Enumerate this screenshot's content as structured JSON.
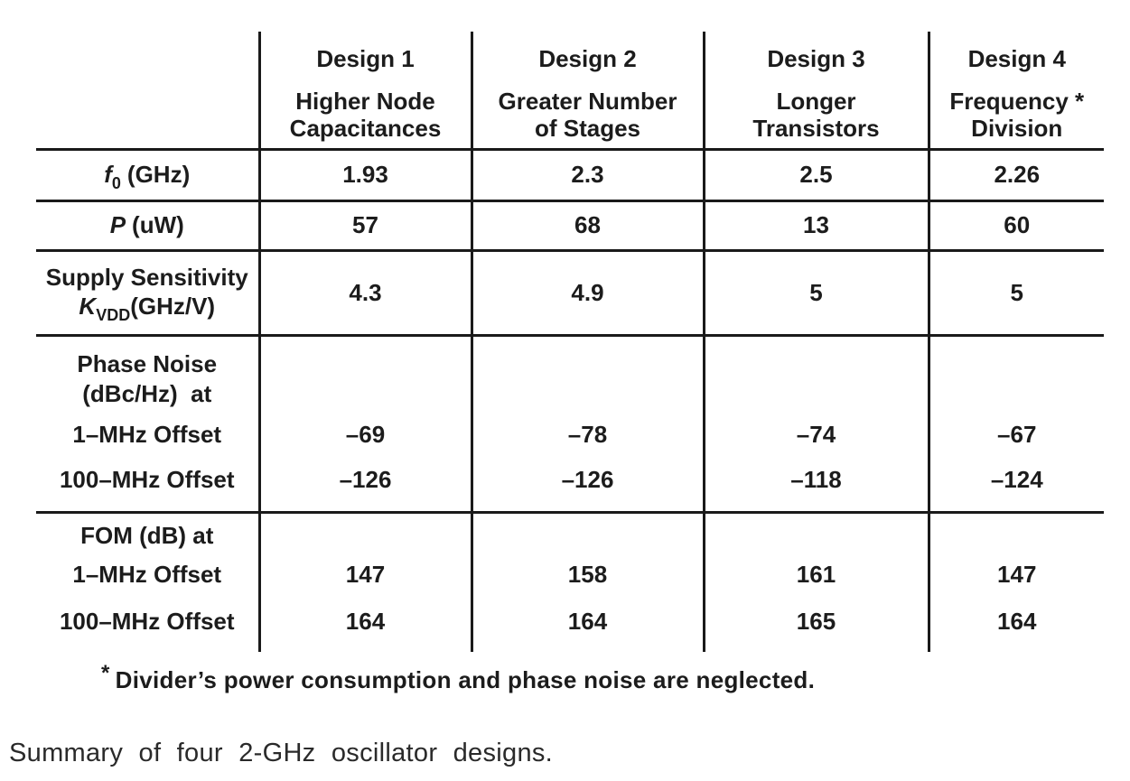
{
  "table": {
    "corner": "",
    "columns": [
      {
        "name": "Design 1",
        "desc1": "Higher Node",
        "desc2": "Capacitances"
      },
      {
        "name": "Design 2",
        "desc1": "Greater Number",
        "desc2": "of Stages"
      },
      {
        "name": "Design 3",
        "desc1": "Longer",
        "desc2": "Transistors"
      },
      {
        "name": "Design 4",
        "desc1": "Frequency *",
        "desc2": "Division"
      }
    ],
    "freq_row": {
      "symbol": "f",
      "sub": "0",
      "unit": "(GHz)",
      "values": [
        "1.93",
        "2.3",
        "2.5",
        "2.26"
      ]
    },
    "power_row": {
      "symbol": "P",
      "unit": "(uW)",
      "values": [
        "57",
        "68",
        "13",
        "60"
      ]
    },
    "supply_row": {
      "line1": "Supply Sensitivity",
      "symbol": "K",
      "sub": "VDD",
      "unit": "(GHz/V)",
      "values": [
        "4.3",
        "4.9",
        "5",
        "5"
      ]
    },
    "phase_row": {
      "title1": "Phase Noise",
      "title2": "(dBc/Hz)  at",
      "offset1": "1–MHz Offset",
      "offset2": "100–MHz Offset",
      "offset1_values": [
        "–69",
        "–78",
        "–74",
        "–67"
      ],
      "offset2_values": [
        "–126",
        "–126",
        "–118",
        "–124"
      ]
    },
    "fom_row": {
      "title": "FOM (dB) at",
      "offset1": "1–MHz Offset",
      "offset2": "100–MHz Offset",
      "offset1_values": [
        "147",
        "158",
        "161",
        "147"
      ],
      "offset2_values": [
        "164",
        "164",
        "165",
        "164"
      ]
    }
  },
  "footnote": {
    "marker": "*",
    "text": "Divider’s power consumption and phase noise are neglected."
  },
  "caption": "Summary of four 2-GHz oscillator designs."
}
